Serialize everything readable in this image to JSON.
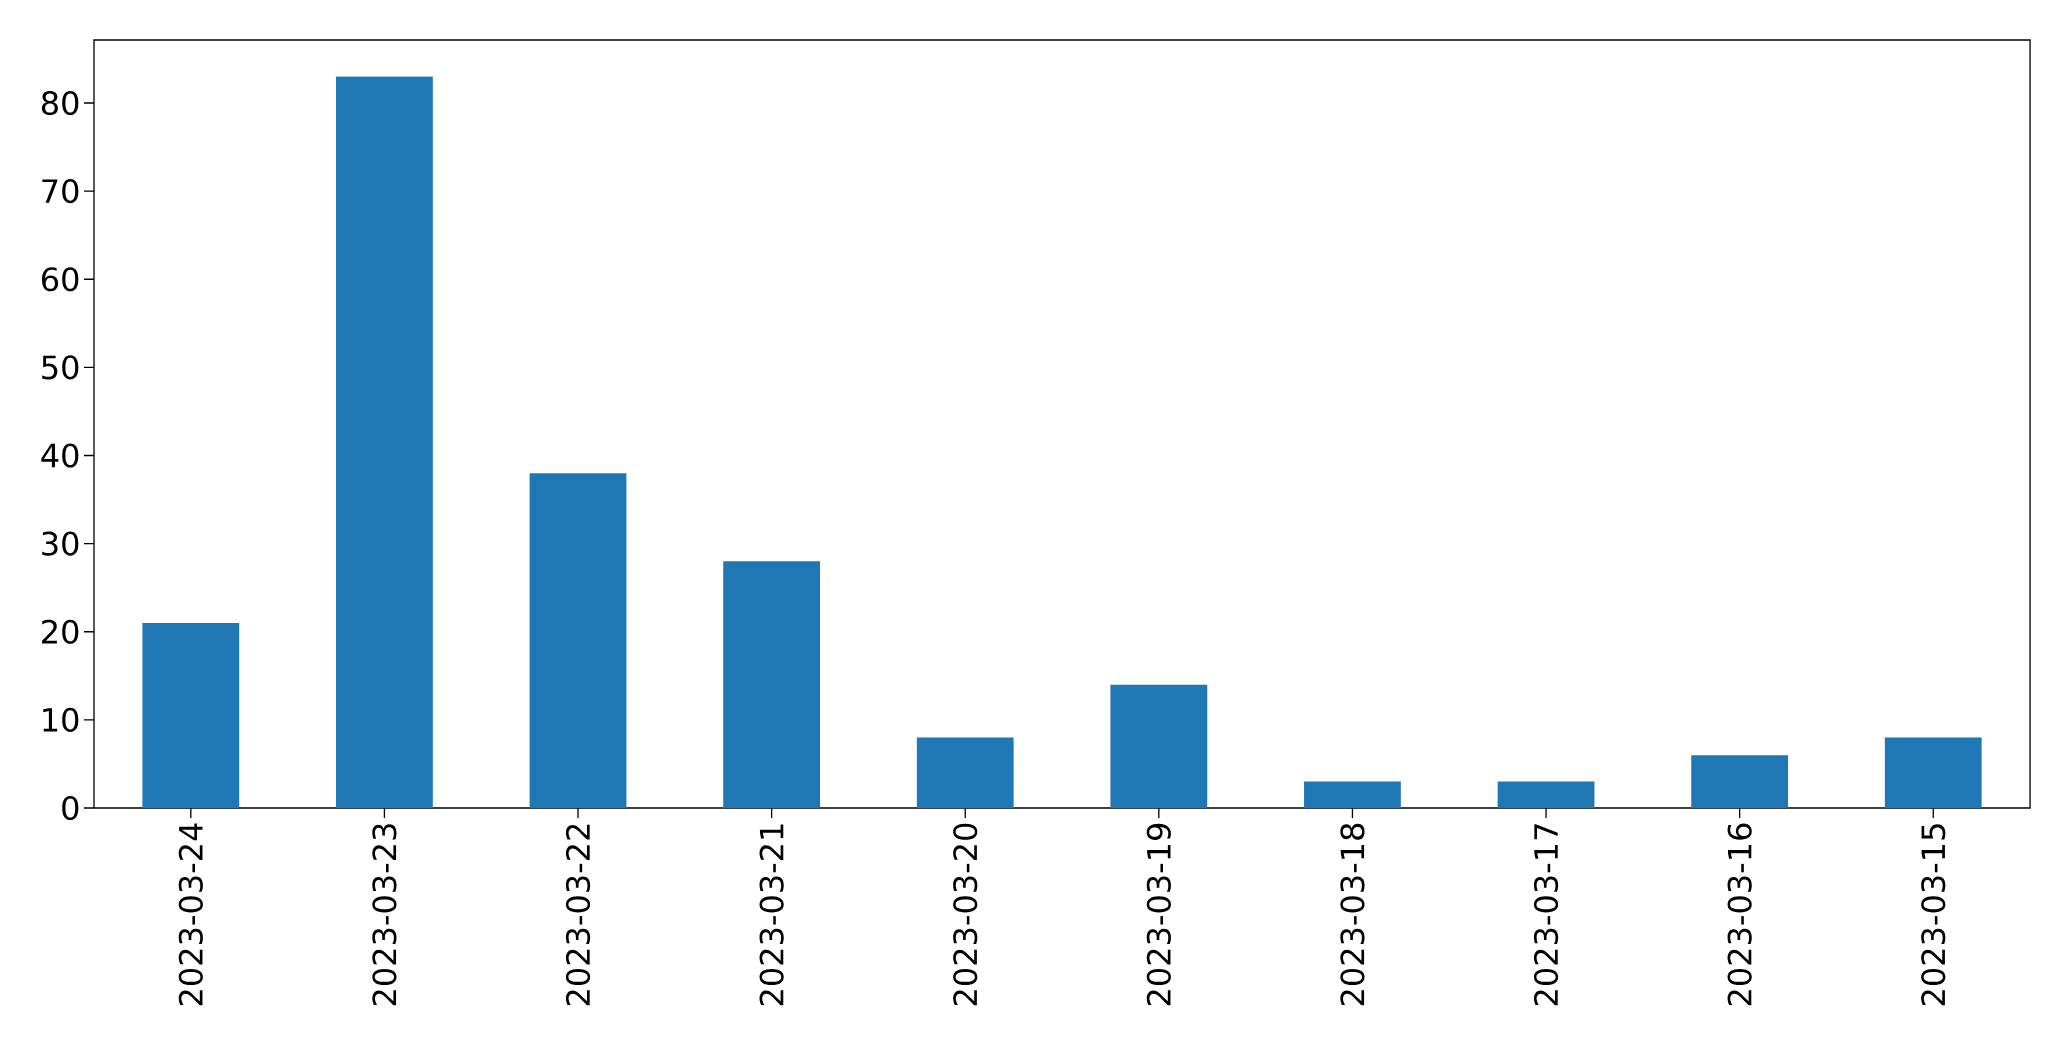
{
  "chart_data": {
    "type": "bar",
    "categories": [
      "2023-03-24",
      "2023-03-23",
      "2023-03-22",
      "2023-03-21",
      "2023-03-20",
      "2023-03-19",
      "2023-03-18",
      "2023-03-17",
      "2023-03-16",
      "2023-03-15"
    ],
    "values": [
      21,
      83,
      38,
      28,
      8,
      14,
      3,
      3,
      6,
      8
    ],
    "color": "#1f77b4",
    "ylim": [
      0,
      87.15
    ],
    "yticks": [
      0,
      10,
      20,
      30,
      40,
      50,
      60,
      70,
      80
    ]
  }
}
